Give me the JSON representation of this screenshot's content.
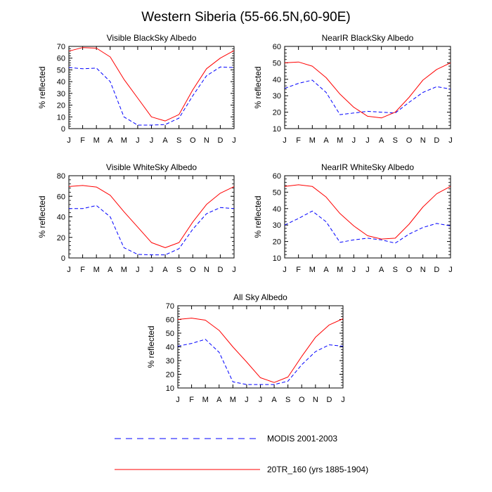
{
  "figure_title": "Western Siberia (55-66.5N,60-90E)",
  "legend": {
    "modis_label": "MODIS 2001-2003",
    "model_label": "20TR_160 (yrs 1885-1904)"
  },
  "colors": {
    "modis": "#0000ff",
    "model": "#ff0000",
    "axis": "#000000"
  },
  "chart_data": [
    {
      "type": "line",
      "title": "Visible BlackSky Albedo",
      "xlabel": "",
      "ylabel": "% reflected",
      "categories": [
        "J",
        "F",
        "M",
        "A",
        "M",
        "J",
        "J",
        "A",
        "S",
        "O",
        "N",
        "D",
        "J"
      ],
      "ylim": [
        0,
        70
      ],
      "yticks": [
        0,
        10,
        20,
        30,
        40,
        50,
        60,
        70
      ],
      "series": [
        {
          "name": "MODIS 2001-2003",
          "values": [
            52,
            51,
            51.5,
            40,
            10,
            3,
            3,
            3.5,
            9,
            28,
            45,
            52.5,
            52
          ]
        },
        {
          "name": "20TR_160 (yrs 1885-1904)",
          "values": [
            66,
            69,
            68.5,
            61,
            42,
            26,
            10,
            6.5,
            12,
            33,
            51,
            60,
            66.5
          ]
        }
      ]
    },
    {
      "type": "line",
      "title": "NearIR BlackSky Albedo",
      "xlabel": "",
      "ylabel": "% reflected",
      "categories": [
        "J",
        "F",
        "M",
        "A",
        "M",
        "J",
        "J",
        "A",
        "S",
        "O",
        "N",
        "D",
        "J"
      ],
      "ylim": [
        10,
        60
      ],
      "yticks": [
        10,
        20,
        30,
        40,
        50,
        60
      ],
      "series": [
        {
          "name": "MODIS 2001-2003",
          "values": [
            34.5,
            37.5,
            39.5,
            32,
            18.5,
            19.5,
            20.5,
            20,
            19.5,
            26,
            32,
            35.5,
            34
          ]
        },
        {
          "name": "20TR_160 (yrs 1885-1904)",
          "values": [
            50,
            50.5,
            48,
            41,
            31,
            23,
            17.5,
            16.5,
            20,
            29,
            39.5,
            46,
            50
          ]
        }
      ]
    },
    {
      "type": "line",
      "title": "Visible WhiteSky Albedo",
      "xlabel": "",
      "ylabel": "% reflected",
      "categories": [
        "J",
        "F",
        "M",
        "A",
        "M",
        "J",
        "J",
        "A",
        "S",
        "O",
        "N",
        "D",
        "J"
      ],
      "ylim": [
        0,
        80
      ],
      "yticks": [
        0,
        20,
        40,
        60,
        80
      ],
      "series": [
        {
          "name": "MODIS 2001-2003",
          "values": [
            48,
            48,
            51,
            40,
            10,
            3.5,
            3,
            3,
            9,
            28,
            43,
            49,
            48
          ]
        },
        {
          "name": "20TR_160 (yrs 1885-1904)",
          "values": [
            69.5,
            70.5,
            69,
            61,
            45,
            30,
            15,
            10,
            15,
            35,
            52,
            63,
            69.5
          ]
        }
      ]
    },
    {
      "type": "line",
      "title": "NearIR WhiteSky Albedo",
      "xlabel": "",
      "ylabel": "% reflected",
      "categories": [
        "J",
        "F",
        "M",
        "A",
        "M",
        "J",
        "J",
        "A",
        "S",
        "O",
        "N",
        "D",
        "J"
      ],
      "ylim": [
        10,
        60
      ],
      "yticks": [
        10,
        20,
        30,
        40,
        50,
        60
      ],
      "series": [
        {
          "name": "MODIS 2001-2003",
          "values": [
            30,
            34,
            38.5,
            32,
            19.5,
            21,
            22,
            21,
            19,
            24.5,
            28.5,
            31,
            29.5
          ]
        },
        {
          "name": "20TR_160 (yrs 1885-1904)",
          "values": [
            53.5,
            54.5,
            53.5,
            47,
            37,
            29.5,
            23.5,
            21.5,
            22,
            30.5,
            41,
            49,
            53.5
          ]
        }
      ]
    },
    {
      "type": "line",
      "title": "All Sky Albedo",
      "xlabel": "",
      "ylabel": "% reflected",
      "categories": [
        "J",
        "F",
        "M",
        "A",
        "M",
        "J",
        "J",
        "A",
        "S",
        "O",
        "N",
        "D",
        "J"
      ],
      "ylim": [
        10,
        70
      ],
      "yticks": [
        10,
        20,
        30,
        40,
        50,
        60,
        70
      ],
      "series": [
        {
          "name": "MODIS 2001-2003",
          "values": [
            40.5,
            42.5,
            45.5,
            36,
            14.5,
            12.5,
            12.5,
            12.5,
            15,
            27,
            36.5,
            41.5,
            40.5
          ]
        },
        {
          "name": "20TR_160 (yrs 1885-1904)",
          "values": [
            60,
            61,
            59.5,
            52,
            40,
            29,
            17.5,
            14,
            18,
            33,
            47,
            56,
            60.5
          ]
        }
      ]
    }
  ]
}
